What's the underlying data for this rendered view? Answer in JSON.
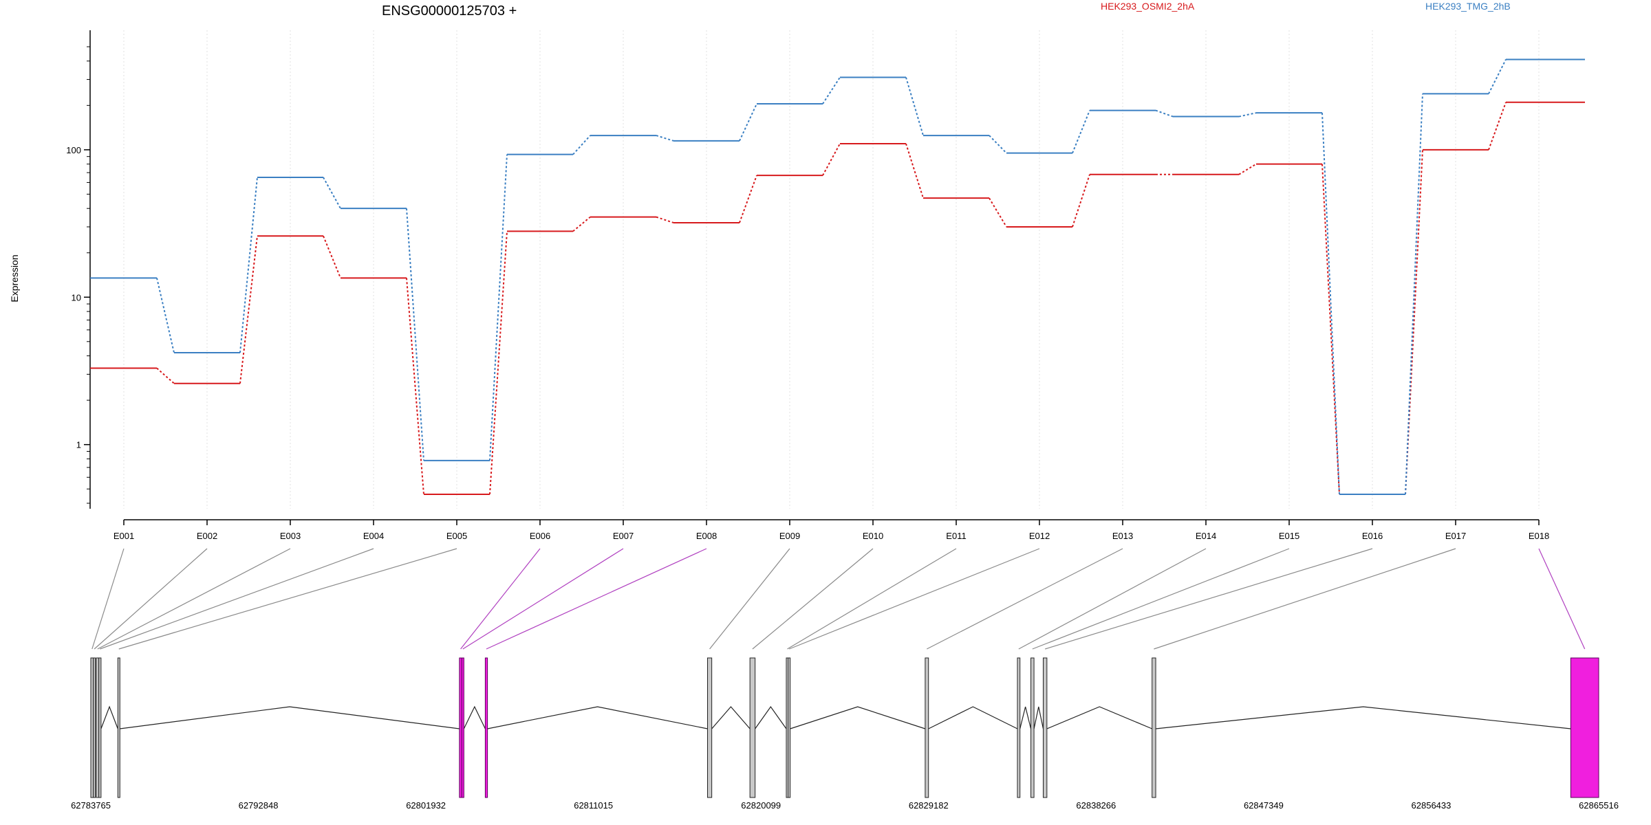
{
  "chart_data": {
    "type": "line",
    "title": "ENSG00000125703 +",
    "ylabel": "Expression",
    "xlabel": "",
    "y_scale": "log",
    "ylim": [
      0.4,
      500
    ],
    "y_ticks": [
      1,
      10,
      100
    ],
    "y_tick_labels": [
      "1",
      "10",
      "100"
    ],
    "grid": "vertical dotted at exon positions",
    "legend_placement": "top",
    "categories": [
      "E001",
      "E002",
      "E003",
      "E004",
      "E005",
      "E006",
      "E007",
      "E008",
      "E009",
      "E010",
      "E011",
      "E012",
      "E013",
      "E014",
      "E015",
      "E016",
      "E017",
      "E018"
    ],
    "series": [
      {
        "name": "HEK293_OSMI2_2hA",
        "color": "#d7191c",
        "values": [
          3.3,
          2.6,
          26,
          13.5,
          0.46,
          28,
          35,
          32,
          67,
          110,
          47,
          30,
          68,
          68,
          80,
          0.46,
          100,
          210
        ]
      },
      {
        "name": "HEK293_TMG_2hB",
        "color": "#3a7fc2",
        "values": [
          13.5,
          4.2,
          65,
          40,
          0.78,
          93,
          125,
          115,
          205,
          310,
          125,
          95,
          185,
          168,
          178,
          0.46,
          240,
          410
        ]
      }
    ],
    "gene_model": {
      "coordinate_labels": [
        "62783765",
        "62792848",
        "62801932",
        "62811015",
        "62820099",
        "62829182",
        "62838266",
        "62847349",
        "62856433",
        "62865516"
      ],
      "highlight_color": "#f01fde",
      "exons": [
        {
          "id": "E001",
          "start": 62783765,
          "end": 62783900,
          "highlight": false
        },
        {
          "id": "E002",
          "start": 62783900,
          "end": 62784000,
          "highlight": false
        },
        {
          "id": "E003",
          "start": 62784060,
          "end": 62784200,
          "highlight": false
        },
        {
          "id": "E004",
          "start": 62784200,
          "end": 62784320,
          "highlight": false
        },
        {
          "id": "E005",
          "start": 62785230,
          "end": 62785320,
          "highlight": false
        },
        {
          "id": "E006",
          "start": 62803750,
          "end": 62803880,
          "highlight": true
        },
        {
          "id": "E007",
          "start": 62803880,
          "end": 62803960,
          "highlight": true
        },
        {
          "id": "E008",
          "start": 62805150,
          "end": 62805270,
          "highlight": true
        },
        {
          "id": "E009",
          "start": 62817200,
          "end": 62817430,
          "highlight": false
        },
        {
          "id": "E010",
          "start": 62819500,
          "end": 62819780,
          "highlight": false
        },
        {
          "id": "E011",
          "start": 62821470,
          "end": 62821570,
          "highlight": false
        },
        {
          "id": "E012",
          "start": 62821570,
          "end": 62821620,
          "highlight": false
        },
        {
          "id": "E013",
          "start": 62829000,
          "end": 62829180,
          "highlight": false
        },
        {
          "id": "E014",
          "start": 62834000,
          "end": 62834140,
          "highlight": false
        },
        {
          "id": "E015",
          "start": 62834730,
          "end": 62834900,
          "highlight": false
        },
        {
          "id": "E016",
          "start": 62835400,
          "end": 62835600,
          "highlight": false
        },
        {
          "id": "E017",
          "start": 62841300,
          "end": 62841500,
          "highlight": false
        },
        {
          "id": "E018",
          "start": 62864000,
          "end": 62865516,
          "highlight": true
        }
      ]
    }
  }
}
